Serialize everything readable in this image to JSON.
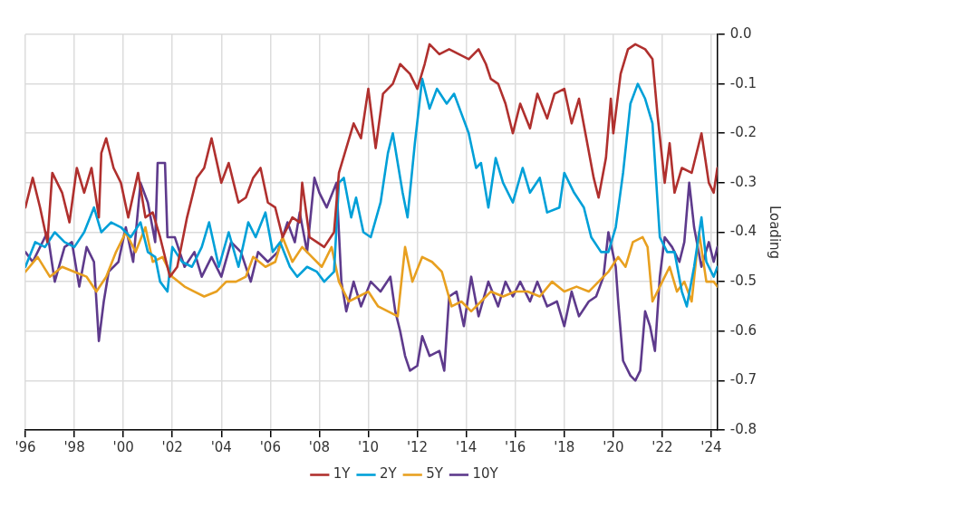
{
  "chart_data": {
    "type": "line",
    "ylabel": "Loading",
    "xlim": [
      1996,
      2024.25
    ],
    "ylim": [
      -0.8,
      0
    ],
    "xticks": [
      {
        "value": 1996,
        "label": "'96"
      },
      {
        "value": 1998,
        "label": "'98"
      },
      {
        "value": 2000,
        "label": "'00"
      },
      {
        "value": 2002,
        "label": "'02"
      },
      {
        "value": 2004,
        "label": "'04"
      },
      {
        "value": 2006,
        "label": "'06"
      },
      {
        "value": 2008,
        "label": "'08"
      },
      {
        "value": 2010,
        "label": "'10"
      },
      {
        "value": 2012,
        "label": "'12"
      },
      {
        "value": 2014,
        "label": "'14"
      },
      {
        "value": 2016,
        "label": "'16"
      },
      {
        "value": 2018,
        "label": "'18"
      },
      {
        "value": 2020,
        "label": "'20"
      },
      {
        "value": 2022,
        "label": "'22"
      },
      {
        "value": 2024,
        "label": "'24"
      }
    ],
    "yticks": [
      {
        "value": 0,
        "label": "0.0"
      },
      -0.1,
      -0.2,
      -0.3,
      -0.4,
      -0.5,
      -0.6,
      -0.7,
      -0.8
    ],
    "grid": true,
    "legend": "bottom",
    "marker": "none",
    "line_style": "solid",
    "series": [
      {
        "name": "1Y",
        "color": "#b0302e",
        "x": [
          1996.0,
          1996.3,
          1996.6,
          1996.9,
          1997.1,
          1997.5,
          1997.8,
          1998.1,
          1998.4,
          1998.7,
          1999.0,
          1999.1,
          1999.3,
          1999.6,
          1999.9,
          2000.2,
          2000.6,
          2000.9,
          2001.2,
          2001.5,
          2001.9,
          2002.2,
          2002.6,
          2003.0,
          2003.3,
          2003.6,
          2004.0,
          2004.3,
          2004.7,
          2005.0,
          2005.3,
          2005.6,
          2005.9,
          2006.2,
          2006.5,
          2006.9,
          2007.2,
          2007.3,
          2007.6,
          2007.9,
          2008.2,
          2008.6,
          2008.8,
          2009.1,
          2009.4,
          2009.7,
          2010.0,
          2010.3,
          2010.6,
          2011.0,
          2011.3,
          2011.7,
          2012.0,
          2012.3,
          2012.5,
          2012.9,
          2013.3,
          2013.7,
          2014.1,
          2014.5,
          2014.8,
          2015.0,
          2015.3,
          2015.6,
          2015.9,
          2016.2,
          2016.6,
          2016.9,
          2017.3,
          2017.6,
          2018.0,
          2018.3,
          2018.6,
          2018.9,
          2019.2,
          2019.4,
          2019.7,
          2019.9,
          2020.0,
          2020.3,
          2020.6,
          2020.9,
          2021.3,
          2021.6,
          2021.8,
          2022.1,
          2022.3,
          2022.5,
          2022.8,
          2023.2,
          2023.6,
          2023.9,
          2024.1,
          2024.25
        ],
        "values": [
          -0.35,
          -0.29,
          -0.35,
          -0.42,
          -0.28,
          -0.32,
          -0.38,
          -0.27,
          -0.32,
          -0.27,
          -0.37,
          -0.24,
          -0.21,
          -0.27,
          -0.3,
          -0.37,
          -0.28,
          -0.37,
          -0.36,
          -0.41,
          -0.49,
          -0.47,
          -0.37,
          -0.29,
          -0.27,
          -0.21,
          -0.3,
          -0.26,
          -0.34,
          -0.33,
          -0.29,
          -0.27,
          -0.34,
          -0.35,
          -0.41,
          -0.37,
          -0.38,
          -0.3,
          -0.41,
          -0.42,
          -0.43,
          -0.4,
          -0.28,
          -0.23,
          -0.18,
          -0.21,
          -0.11,
          -0.23,
          -0.12,
          -0.1,
          -0.06,
          -0.08,
          -0.11,
          -0.06,
          -0.02,
          -0.04,
          -0.03,
          -0.04,
          -0.05,
          -0.03,
          -0.06,
          -0.09,
          -0.1,
          -0.14,
          -0.2,
          -0.14,
          -0.19,
          -0.12,
          -0.17,
          -0.12,
          -0.11,
          -0.18,
          -0.13,
          -0.21,
          -0.29,
          -0.33,
          -0.25,
          -0.13,
          -0.2,
          -0.08,
          -0.03,
          -0.02,
          -0.03,
          -0.05,
          -0.16,
          -0.3,
          -0.22,
          -0.32,
          -0.27,
          -0.28,
          -0.2,
          -0.3,
          -0.32,
          -0.27
        ]
      },
      {
        "name": "2Y",
        "color": "#00a0d8",
        "x": [
          1996.0,
          1996.4,
          1996.8,
          1997.2,
          1997.6,
          1998.0,
          1998.4,
          1998.8,
          1999.1,
          1999.5,
          1999.9,
          2000.3,
          2000.7,
          2001.0,
          2001.3,
          2001.5,
          2001.8,
          2002.0,
          2002.4,
          2002.8,
          2003.2,
          2003.5,
          2003.9,
          2004.3,
          2004.7,
          2005.1,
          2005.4,
          2005.8,
          2006.1,
          2006.4,
          2006.8,
          2007.1,
          2007.5,
          2007.9,
          2008.2,
          2008.6,
          2008.8,
          2009.0,
          2009.3,
          2009.5,
          2009.8,
          2010.1,
          2010.5,
          2010.8,
          2011.0,
          2011.4,
          2011.6,
          2011.9,
          2012.2,
          2012.5,
          2012.8,
          2013.2,
          2013.5,
          2013.8,
          2014.1,
          2014.4,
          2014.6,
          2014.9,
          2015.2,
          2015.5,
          2015.9,
          2016.3,
          2016.6,
          2017.0,
          2017.3,
          2017.8,
          2018.0,
          2018.4,
          2018.8,
          2019.1,
          2019.5,
          2019.8,
          2020.1,
          2020.4,
          2020.7,
          2021.0,
          2021.3,
          2021.6,
          2021.9,
          2022.2,
          2022.5,
          2022.8,
          2023.0,
          2023.3,
          2023.6,
          2023.8,
          2024.1,
          2024.25
        ],
        "values": [
          -0.47,
          -0.42,
          -0.43,
          -0.4,
          -0.42,
          -0.43,
          -0.4,
          -0.35,
          -0.4,
          -0.38,
          -0.39,
          -0.41,
          -0.38,
          -0.44,
          -0.45,
          -0.5,
          -0.52,
          -0.43,
          -0.46,
          -0.47,
          -0.43,
          -0.38,
          -0.47,
          -0.4,
          -0.47,
          -0.38,
          -0.41,
          -0.36,
          -0.44,
          -0.42,
          -0.47,
          -0.49,
          -0.47,
          -0.48,
          -0.5,
          -0.48,
          -0.3,
          -0.29,
          -0.37,
          -0.33,
          -0.4,
          -0.41,
          -0.34,
          -0.24,
          -0.2,
          -0.32,
          -0.37,
          -0.22,
          -0.09,
          -0.15,
          -0.11,
          -0.14,
          -0.12,
          -0.16,
          -0.2,
          -0.27,
          -0.26,
          -0.35,
          -0.25,
          -0.3,
          -0.34,
          -0.27,
          -0.32,
          -0.29,
          -0.36,
          -0.35,
          -0.28,
          -0.32,
          -0.35,
          -0.41,
          -0.44,
          -0.44,
          -0.39,
          -0.28,
          -0.14,
          -0.1,
          -0.13,
          -0.18,
          -0.41,
          -0.44,
          -0.44,
          -0.52,
          -0.55,
          -0.47,
          -0.37,
          -0.46,
          -0.49,
          -0.47
        ]
      },
      {
        "name": "5Y",
        "color": "#e8a020",
        "x": [
          1996.0,
          1996.5,
          1997.0,
          1997.5,
          1998.0,
          1998.5,
          1998.9,
          1999.3,
          1999.7,
          2000.1,
          2000.5,
          2000.9,
          2001.2,
          2001.6,
          2002.0,
          2002.5,
          2002.9,
          2003.3,
          2003.8,
          2004.2,
          2004.6,
          2005.0,
          2005.3,
          2005.8,
          2006.2,
          2006.5,
          2006.9,
          2007.3,
          2007.7,
          2008.1,
          2008.5,
          2008.8,
          2009.2,
          2009.6,
          2010.0,
          2010.4,
          2010.8,
          2011.2,
          2011.5,
          2011.8,
          2012.2,
          2012.6,
          2013.0,
          2013.4,
          2013.8,
          2014.2,
          2014.6,
          2015.0,
          2015.5,
          2016.0,
          2016.5,
          2017.0,
          2017.5,
          2018.0,
          2018.5,
          2019.0,
          2019.4,
          2019.8,
          2020.2,
          2020.5,
          2020.8,
          2021.2,
          2021.4,
          2021.6,
          2022.0,
          2022.3,
          2022.6,
          2022.9,
          2023.2,
          2023.5,
          2023.8,
          2024.1,
          2024.25
        ],
        "values": [
          -0.48,
          -0.45,
          -0.49,
          -0.47,
          -0.48,
          -0.49,
          -0.52,
          -0.49,
          -0.44,
          -0.4,
          -0.44,
          -0.39,
          -0.46,
          -0.45,
          -0.49,
          -0.51,
          -0.52,
          -0.53,
          -0.52,
          -0.5,
          -0.5,
          -0.49,
          -0.45,
          -0.47,
          -0.46,
          -0.41,
          -0.46,
          -0.43,
          -0.45,
          -0.47,
          -0.43,
          -0.5,
          -0.54,
          -0.53,
          -0.52,
          -0.55,
          -0.56,
          -0.57,
          -0.43,
          -0.5,
          -0.45,
          -0.46,
          -0.48,
          -0.55,
          -0.54,
          -0.56,
          -0.54,
          -0.52,
          -0.53,
          -0.52,
          -0.52,
          -0.53,
          -0.5,
          -0.52,
          -0.51,
          -0.52,
          -0.5,
          -0.48,
          -0.45,
          -0.47,
          -0.42,
          -0.41,
          -0.43,
          -0.54,
          -0.5,
          -0.47,
          -0.52,
          -0.5,
          -0.54,
          -0.4,
          -0.5,
          -0.5,
          -0.51
        ]
      },
      {
        "name": "10Y",
        "color": "#5e3a8c",
        "x": [
          1996.0,
          1996.3,
          1996.6,
          1996.9,
          1997.2,
          1997.6,
          1997.9,
          1998.2,
          1998.5,
          1998.8,
          1998.9,
          1999.0,
          1999.2,
          1999.4,
          1999.8,
          2000.1,
          2000.4,
          2000.7,
          2001.0,
          2001.3,
          2001.4,
          2001.7,
          2001.8,
          2002.1,
          2002.5,
          2002.9,
          2003.2,
          2003.6,
          2004.0,
          2004.4,
          2004.8,
          2005.2,
          2005.5,
          2005.9,
          2006.3,
          2006.7,
          2007.0,
          2007.2,
          2007.5,
          2007.8,
          2008.0,
          2008.3,
          2008.7,
          2008.9,
          2009.1,
          2009.4,
          2009.7,
          2010.1,
          2010.5,
          2010.9,
          2011.1,
          2011.3,
          2011.5,
          2011.7,
          2012.0,
          2012.2,
          2012.5,
          2012.9,
          2013.1,
          2013.3,
          2013.6,
          2013.9,
          2014.2,
          2014.5,
          2014.9,
          2015.3,
          2015.6,
          2015.9,
          2016.2,
          2016.6,
          2016.9,
          2017.3,
          2017.7,
          2018.0,
          2018.3,
          2018.6,
          2019.0,
          2019.3,
          2019.6,
          2019.8,
          2020.1,
          2020.2,
          2020.4,
          2020.7,
          2020.9,
          2021.1,
          2021.3,
          2021.5,
          2021.7,
          2021.9,
          2022.1,
          2022.4,
          2022.7,
          2022.9,
          2023.1,
          2023.3,
          2023.6,
          2023.9,
          2024.1,
          2024.25
        ],
        "values": [
          -0.44,
          -0.46,
          -0.43,
          -0.4,
          -0.5,
          -0.43,
          -0.42,
          -0.51,
          -0.43,
          -0.46,
          -0.54,
          -0.62,
          -0.54,
          -0.48,
          -0.46,
          -0.39,
          -0.46,
          -0.3,
          -0.34,
          -0.42,
          -0.26,
          -0.26,
          -0.41,
          -0.41,
          -0.47,
          -0.44,
          -0.49,
          -0.45,
          -0.49,
          -0.42,
          -0.44,
          -0.5,
          -0.44,
          -0.46,
          -0.44,
          -0.38,
          -0.42,
          -0.36,
          -0.44,
          -0.29,
          -0.32,
          -0.35,
          -0.3,
          -0.5,
          -0.56,
          -0.5,
          -0.55,
          -0.5,
          -0.52,
          -0.49,
          -0.56,
          -0.6,
          -0.65,
          -0.68,
          -0.67,
          -0.61,
          -0.65,
          -0.64,
          -0.68,
          -0.53,
          -0.52,
          -0.59,
          -0.49,
          -0.57,
          -0.5,
          -0.55,
          -0.5,
          -0.53,
          -0.5,
          -0.54,
          -0.5,
          -0.55,
          -0.54,
          -0.59,
          -0.52,
          -0.57,
          -0.54,
          -0.53,
          -0.49,
          -0.4,
          -0.47,
          -0.54,
          -0.66,
          -0.69,
          -0.7,
          -0.68,
          -0.56,
          -0.59,
          -0.64,
          -0.49,
          -0.41,
          -0.43,
          -0.46,
          -0.42,
          -0.3,
          -0.39,
          -0.47,
          -0.42,
          -0.46,
          -0.43
        ]
      }
    ]
  }
}
